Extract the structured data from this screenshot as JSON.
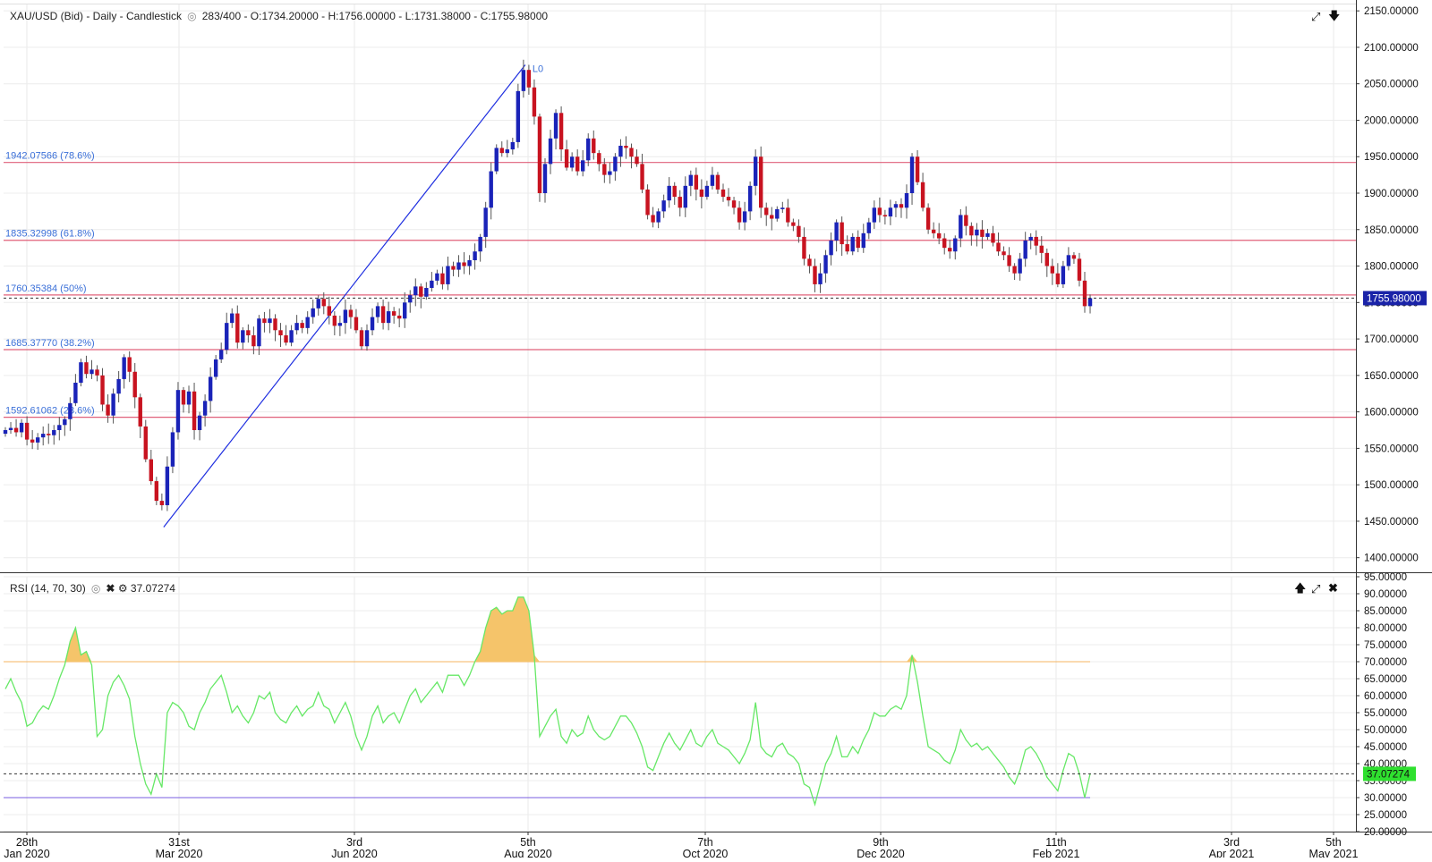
{
  "header": {
    "symbol": "XAU/USD (Bid) - Daily - Candlestick",
    "ohlc": "283/400 - O:1734.20000 - H:1756.00000 - L:1731.38000 - C:1755.98000"
  },
  "rsi_header": {
    "label": "RSI (14, 70, 30)",
    "value": "37.07274"
  },
  "colors": {
    "up": "#1a23b8",
    "down": "#c81320",
    "fib": "#e0607a",
    "trend": "#1e2ee0",
    "rsi_line": "#66e866",
    "rsi_fill": "#f5c46a",
    "rsi_over": "#f5b560",
    "rsi_under": "#7a5ce0",
    "price_badge": "#1a23a8",
    "rsi_badge": "#2fe02f"
  },
  "icons": {
    "expand": "expand-arrows-icon",
    "download": "arrow-down-icon",
    "hide": "eye-icon",
    "close": "close-icon",
    "settings": "gear-icon",
    "move_up": "arrow-up-icon"
  },
  "chart_data": [
    {
      "type": "candlestick",
      "title": "XAU/USD (Bid) - Daily - Candlestick",
      "ylim": [
        1380,
        2160
      ],
      "yticks": [
        "2150.00000",
        "2100.00000",
        "2050.00000",
        "2000.00000",
        "1950.00000",
        "1900.00000",
        "1850.00000",
        "1800.00000",
        "1750.00000",
        "1700.00000",
        "1650.00000",
        "1600.00000",
        "1550.00000",
        "1500.00000",
        "1450.00000",
        "1400.00000"
      ],
      "xticks": [
        {
          "top": "28th",
          "bottom": "Jan 2020"
        },
        {
          "top": "31st",
          "bottom": "Mar 2020"
        },
        {
          "top": "3rd",
          "bottom": "Jun 2020"
        },
        {
          "top": "5th",
          "bottom": "Aug 2020"
        },
        {
          "top": "7th",
          "bottom": "Oct 2020"
        },
        {
          "top": "9th",
          "bottom": "Dec 2020"
        },
        {
          "top": "11th",
          "bottom": "Feb 2021"
        },
        {
          "top": "3rd",
          "bottom": "Apr 2021"
        },
        {
          "top": "5th",
          "bottom": "May 2021"
        }
      ],
      "last_price": 1755.98,
      "last_price_label": "1755.98000",
      "fib_levels": [
        {
          "price": 1942.07566,
          "label": "1942.07566 (78.6%)"
        },
        {
          "price": 1835.32998,
          "label": "1835.32998 (61.8%)"
        },
        {
          "price": 1760.35384,
          "label": "1760.35384 (50%)"
        },
        {
          "price": 1685.3777,
          "label": "1685.37770 (38.2%)"
        },
        {
          "price": 1592.61062,
          "label": "1592.61062 (23.6%)"
        }
      ],
      "trendline": {
        "from": 1442,
        "to": 2076,
        "label": "L0"
      },
      "closes": [
        1575,
        1578,
        1572,
        1585,
        1562,
        1558,
        1565,
        1570,
        1568,
        1575,
        1582,
        1590,
        1612,
        1640,
        1668,
        1652,
        1658,
        1650,
        1610,
        1595,
        1625,
        1645,
        1675,
        1655,
        1620,
        1580,
        1535,
        1505,
        1478,
        1472,
        1525,
        1572,
        1630,
        1610,
        1628,
        1575,
        1595,
        1615,
        1648,
        1672,
        1685,
        1722,
        1735,
        1695,
        1712,
        1705,
        1690,
        1728,
        1722,
        1728,
        1712,
        1705,
        1695,
        1712,
        1722,
        1715,
        1730,
        1742,
        1755,
        1745,
        1732,
        1718,
        1722,
        1740,
        1730,
        1712,
        1690,
        1712,
        1730,
        1745,
        1722,
        1738,
        1732,
        1728,
        1750,
        1760,
        1772,
        1758,
        1770,
        1780,
        1790,
        1775,
        1800,
        1795,
        1805,
        1800,
        1808,
        1820,
        1840,
        1880,
        1930,
        1962,
        1955,
        1960,
        1970,
        2040,
        2069,
        2045,
        2005,
        1900,
        1940,
        1975,
        2010,
        1960,
        1935,
        1950,
        1930,
        1945,
        1975,
        1955,
        1940,
        1925,
        1930,
        1950,
        1965,
        1962,
        1950,
        1940,
        1905,
        1870,
        1860,
        1875,
        1890,
        1910,
        1895,
        1880,
        1910,
        1925,
        1905,
        1895,
        1910,
        1925,
        1905,
        1895,
        1890,
        1880,
        1860,
        1875,
        1910,
        1950,
        1880,
        1870,
        1865,
        1878,
        1880,
        1860,
        1855,
        1840,
        1810,
        1800,
        1775,
        1790,
        1815,
        1835,
        1860,
        1830,
        1820,
        1840,
        1825,
        1845,
        1860,
        1880,
        1870,
        1868,
        1880,
        1885,
        1880,
        1900,
        1950,
        1915,
        1880,
        1850,
        1845,
        1838,
        1825,
        1820,
        1838,
        1870,
        1855,
        1842,
        1850,
        1840,
        1845,
        1832,
        1820,
        1815,
        1800,
        1790,
        1810,
        1835,
        1840,
        1828,
        1818,
        1800,
        1790,
        1775,
        1800,
        1815,
        1810,
        1780,
        1745,
        1756
      ]
    },
    {
      "type": "line",
      "title": "RSI (14, 70, 30)",
      "ylim": [
        20,
        95
      ],
      "yticks": [
        "95.00000",
        "90.00000",
        "85.00000",
        "80.00000",
        "75.00000",
        "70.00000",
        "65.00000",
        "60.00000",
        "55.00000",
        "50.00000",
        "45.00000",
        "40.00000",
        "35.00000",
        "30.00000",
        "25.00000",
        "20.00000"
      ],
      "overbought": 70,
      "oversold": 30,
      "last_value_label": "37.07274",
      "values": [
        62,
        65,
        61,
        58,
        51,
        52,
        55,
        57,
        56,
        60,
        65,
        69,
        76,
        80,
        72,
        73,
        69,
        48,
        50,
        60,
        64,
        66,
        63,
        59,
        48,
        40,
        34,
        31,
        37,
        33,
        55,
        58,
        57,
        55,
        51,
        50,
        55,
        58,
        62,
        64,
        66,
        61,
        55,
        57,
        54,
        52,
        55,
        60,
        59,
        61,
        55,
        53,
        52,
        55,
        57,
        54,
        56,
        57,
        61,
        57,
        56,
        52,
        55,
        58,
        54,
        48,
        44,
        48,
        54,
        57,
        52,
        54,
        55,
        52,
        56,
        60,
        62,
        58,
        60,
        62,
        64,
        61,
        66,
        66,
        66,
        63,
        66,
        70,
        73,
        80,
        85,
        86,
        84,
        85,
        85,
        89,
        89,
        85,
        72,
        48,
        51,
        54,
        56,
        48,
        46,
        50,
        48,
        49,
        54,
        50,
        48,
        47,
        48,
        51,
        54,
        54,
        52,
        49,
        45,
        39,
        38,
        42,
        46,
        49,
        46,
        44,
        47,
        50,
        46,
        45,
        48,
        50,
        46,
        45,
        44,
        42,
        40,
        43,
        47,
        58,
        45,
        43,
        42,
        45,
        46,
        43,
        42,
        40,
        34,
        33,
        28,
        34,
        40,
        43,
        48,
        42,
        42,
        45,
        43,
        47,
        50,
        55,
        54,
        54,
        56,
        57,
        56,
        60,
        72,
        64,
        54,
        45,
        44,
        43,
        41,
        40,
        44,
        50,
        47,
        45,
        46,
        44,
        45,
        43,
        41,
        39,
        36,
        34,
        38,
        44,
        45,
        43,
        40,
        36,
        34,
        32,
        38,
        43,
        42,
        37,
        30,
        37
      ]
    }
  ]
}
